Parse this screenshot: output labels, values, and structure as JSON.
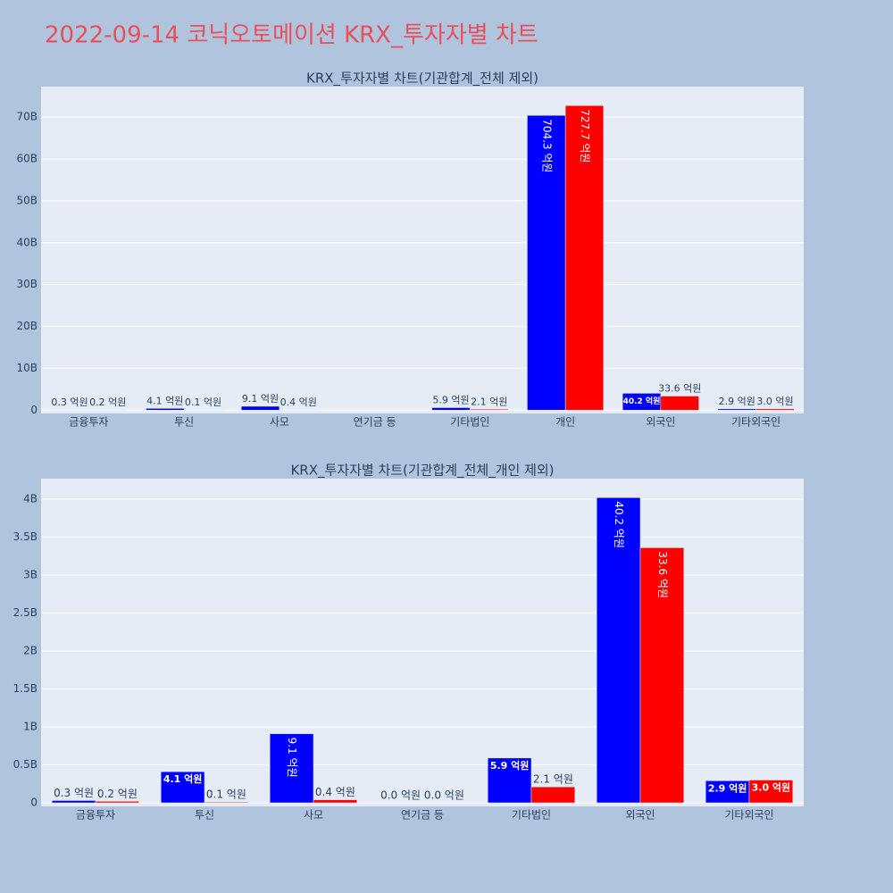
{
  "title": "2022-09-14 코닉오토메이션 KRX_투자자별 차트",
  "chart_data": [
    {
      "type": "bar",
      "title": "KRX_투자자별 차트(기관합계_전체 제외)",
      "categories": [
        "금융투자",
        "투신",
        "사모",
        "연기금 등",
        "기타법인",
        "개인",
        "외국인",
        "기타외국인"
      ],
      "series": [
        {
          "color": "#0000ff",
          "values": [
            30000000,
            410000000,
            910000000,
            0,
            590000000,
            70430000000,
            4020000000,
            290000000
          ],
          "value_labels": [
            "0.3 억원",
            "4.1 억원",
            "9.1 억원",
            null,
            "5.9 억원",
            "704.3 억원",
            "40.2 억원",
            "2.9 억원"
          ]
        },
        {
          "color": "#ff0000",
          "values": [
            20000000,
            10000000,
            40000000,
            0,
            210000000,
            72770000000,
            3360000000,
            300000000
          ],
          "value_labels": [
            "0.2 억원",
            "0.1 억원",
            "0.4 억원",
            null,
            "2.1 억원",
            "727.7 억원",
            "33.6 억원",
            "3.0 억원"
          ]
        }
      ],
      "ylim": [
        -800000000,
        77300000000
      ],
      "yticks": [
        0,
        {
          "value": 10000000000,
          "label": "10B"
        },
        {
          "value": 20000000000,
          "label": "20B"
        },
        {
          "value": 30000000000,
          "label": "30B"
        },
        {
          "value": 40000000000,
          "label": "40B"
        },
        {
          "value": 50000000000,
          "label": "50B"
        },
        {
          "value": 60000000000,
          "label": "60B"
        },
        {
          "value": 70000000000,
          "label": "70B"
        }
      ],
      "grid": true
    },
    {
      "type": "bar",
      "title": "KRX_투자자별 차트(기관합계_전체_개인 제외)",
      "categories": [
        "금융투자",
        "투신",
        "사모",
        "연기금 등",
        "기타법인",
        "외국인",
        "기타외국인"
      ],
      "series": [
        {
          "color": "#0000ff",
          "values": [
            30000000,
            410000000,
            910000000,
            0,
            590000000,
            4020000000,
            290000000
          ],
          "value_labels": [
            "0.3 억원",
            "4.1 억원",
            "9.1 억원",
            "0.0 억원",
            "5.9 억원",
            "40.2 억원",
            "2.9 억원"
          ]
        },
        {
          "color": "#ff0000",
          "values": [
            20000000,
            10000000,
            40000000,
            0,
            210000000,
            3360000000,
            300000000
          ],
          "value_labels": [
            "0.2 억원",
            "0.1 억원",
            "0.4 억원",
            "0.0 억원",
            "2.1 억원",
            "33.6 억원",
            "3.0 억원"
          ]
        }
      ],
      "ylim": [
        -47000000,
        4270000000
      ],
      "yticks": [
        0,
        {
          "value": 500000000,
          "label": "0.5B"
        },
        {
          "value": 1000000000,
          "label": "1B"
        },
        {
          "value": 1500000000,
          "label": "1.5B"
        },
        {
          "value": 2000000000,
          "label": "2B"
        },
        {
          "value": 2500000000,
          "label": "2.5B"
        },
        {
          "value": 3000000000,
          "label": "3B"
        },
        {
          "value": 3500000000,
          "label": "3.5B"
        },
        {
          "value": 4000000000,
          "label": "4B"
        }
      ],
      "grid": true
    }
  ]
}
